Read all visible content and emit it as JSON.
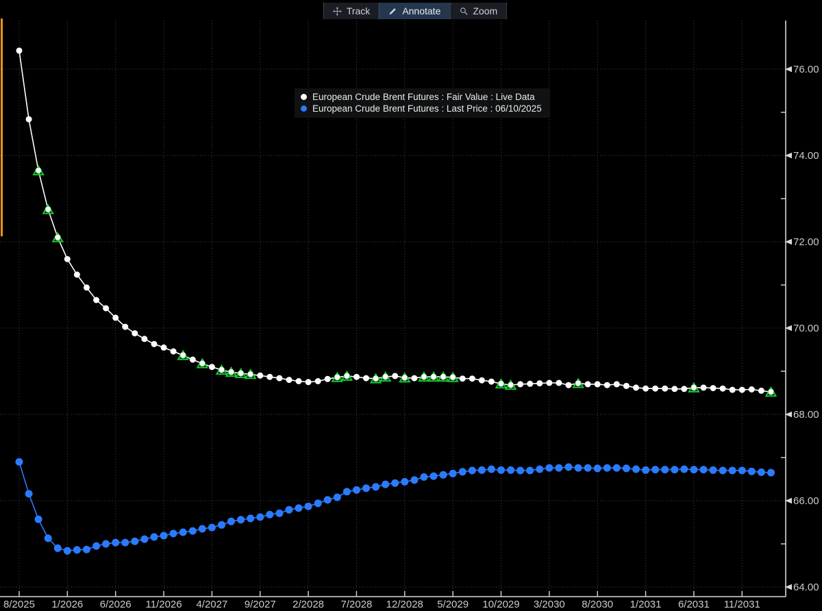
{
  "toolbar": {
    "buttons": [
      {
        "label": "Track",
        "icon": "track-move-icon",
        "active": false
      },
      {
        "label": "Annotate",
        "icon": "annotate-pencil-icon",
        "active": true
      },
      {
        "label": "Zoom",
        "icon": "zoom-magnifier-icon",
        "active": false
      }
    ]
  },
  "legend": {
    "items": [
      {
        "label": "European Crude Brent Futures : Fair Value : Live Data",
        "color": "#ffffff"
      },
      {
        "label": "European Crude Brent Futures : Last Price : 06/10/2025",
        "color": "#2b7bff"
      }
    ]
  },
  "colors": {
    "background": "#000000",
    "grid": "#46494f",
    "axis": "#d9d9d9",
    "tick_label": "#c7ccd2",
    "fair_value": "#ffffff",
    "last_price": "#2b7bff",
    "annotation_green": "#14d02e",
    "highlight_orange": "#ee9418",
    "toolbar_bg": "#1a1e24",
    "toolbar_active_bg": "#24374e",
    "legend_bg": "#111214"
  },
  "chart_data": {
    "type": "line",
    "title": "",
    "x_unit": "contract month (monthly steps)",
    "x_start_label": "8/2025",
    "x_tick_indices": [
      0,
      5,
      10,
      15,
      20,
      25,
      30,
      35,
      40,
      45,
      50,
      55,
      60,
      65,
      70,
      75
    ],
    "x_tick_labels": [
      "8/2025",
      "1/2026",
      "6/2026",
      "11/2026",
      "4/2027",
      "9/2027",
      "2/2028",
      "7/2028",
      "12/2028",
      "5/2029",
      "10/2029",
      "3/2030",
      "8/2030",
      "1/2031",
      "6/2031",
      "11/2031"
    ],
    "y_axis": {
      "major_tick_values": [
        76,
        74,
        72,
        70,
        68,
        66,
        64
      ],
      "major_tick_labels": [
        "76.00",
        "74.00",
        "72.00",
        "70.00",
        "68.00",
        "66.00",
        "64.00"
      ],
      "minor_tick_values": [
        75,
        73,
        71,
        69,
        67,
        65
      ],
      "ylim": [
        63.9,
        76.65
      ]
    },
    "grid": "dotted",
    "legend_position": "inside-top-center",
    "series": [
      {
        "name": "European Crude Brent Futures : Fair Value : Live Data",
        "color": "#ffffff",
        "marker": "circle",
        "marker_radius": 4.5,
        "values": [
          76.43,
          74.84,
          73.65,
          72.75,
          72.1,
          71.6,
          71.24,
          70.94,
          70.65,
          70.46,
          70.24,
          70.03,
          69.88,
          69.75,
          69.63,
          69.55,
          69.46,
          69.37,
          69.27,
          69.18,
          69.1,
          69.03,
          68.98,
          68.95,
          68.93,
          68.9,
          68.87,
          68.84,
          68.8,
          68.77,
          68.75,
          68.77,
          68.82,
          68.86,
          68.89,
          68.87,
          68.84,
          68.83,
          68.87,
          68.89,
          68.85,
          68.84,
          68.87,
          68.87,
          68.87,
          68.86,
          68.83,
          68.83,
          68.79,
          68.76,
          68.71,
          68.68,
          68.7,
          68.71,
          68.72,
          68.73,
          68.73,
          68.68,
          68.72,
          68.7,
          68.7,
          68.68,
          68.7,
          68.66,
          68.62,
          68.6,
          68.6,
          68.6,
          68.59,
          68.59,
          68.62,
          68.62,
          68.61,
          68.6,
          68.57,
          68.57,
          68.58,
          68.55,
          68.52
        ]
      },
      {
        "name": "European Crude Brent Futures : Last Price : 06/10/2025",
        "color": "#2b7bff",
        "marker": "circle",
        "marker_radius": 5.5,
        "values": [
          66.9,
          66.16,
          65.57,
          65.13,
          64.9,
          64.84,
          64.86,
          64.87,
          64.95,
          65.0,
          65.03,
          65.03,
          65.06,
          65.11,
          65.16,
          65.19,
          65.24,
          65.27,
          65.3,
          65.35,
          65.38,
          65.44,
          65.52,
          65.56,
          65.59,
          65.62,
          65.68,
          65.71,
          65.79,
          65.83,
          65.87,
          65.94,
          66.02,
          66.08,
          66.21,
          66.25,
          66.29,
          66.32,
          66.38,
          66.41,
          66.44,
          66.48,
          66.55,
          66.57,
          66.6,
          66.63,
          66.67,
          66.7,
          66.71,
          66.73,
          66.71,
          66.71,
          66.7,
          66.7,
          66.73,
          66.76,
          66.76,
          66.78,
          66.76,
          66.76,
          66.75,
          66.76,
          66.76,
          66.75,
          66.73,
          66.71,
          66.72,
          66.72,
          66.72,
          66.73,
          66.72,
          66.72,
          66.71,
          66.7,
          66.7,
          66.7,
          66.68,
          66.66,
          66.65
        ]
      }
    ],
    "annotations": {
      "type": "triangle-up",
      "on_series": "European Crude Brent Futures : Fair Value : Live Data",
      "color": "#14d02e",
      "month_indices": [
        2,
        3,
        4,
        17,
        19,
        21,
        22,
        23,
        24,
        33,
        34,
        37,
        38,
        40,
        42,
        43,
        44,
        45,
        50,
        51,
        58,
        70,
        78
      ]
    }
  }
}
